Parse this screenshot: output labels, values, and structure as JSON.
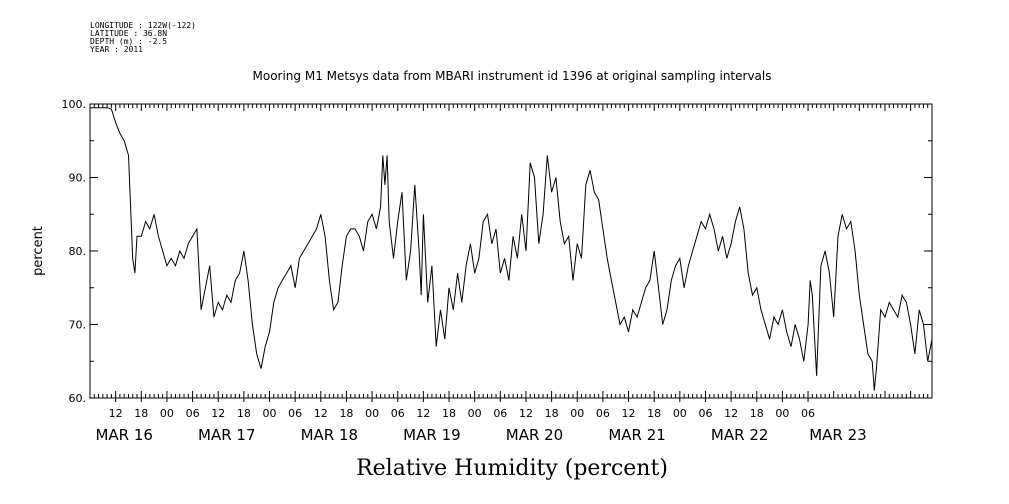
{
  "header": {
    "longitude": "LONGITUDE : 122W(-122)",
    "latitude": "LATITUDE : 36.8N",
    "depth": "DEPTH (m) : -2.5",
    "year": "YEAR : 2011"
  },
  "chart_data": {
    "type": "line",
    "title": "Mooring M1 Metsys data from MBARI instrument id 1396 at original sampling intervals",
    "xlabel": "Relative Humidity (percent)",
    "ylabel": "percent",
    "ylim": [
      60,
      100
    ],
    "yticks": [
      60,
      70,
      80,
      90,
      100
    ],
    "ytick_labels": [
      "60.",
      "70.",
      "80.",
      "90.",
      "100."
    ],
    "xlim_hours": [
      0,
      138
    ],
    "hour_ticks": [
      "12",
      "18",
      "00",
      "06",
      "12",
      "18",
      "00",
      "06",
      "12",
      "18",
      "00",
      "06",
      "12",
      "18",
      "00",
      "06",
      "12",
      "18",
      "00",
      "06",
      "12",
      "18",
      "00",
      "06",
      "12",
      "18",
      "00",
      "06"
    ],
    "date_labels": [
      "MAR 16",
      "MAR 17",
      "MAR 18",
      "MAR 19",
      "MAR 20",
      "MAR 21",
      "MAR 22",
      "MAR 23"
    ],
    "grid": false,
    "color": "#000000",
    "series": [
      {
        "values": [
          [
            0,
            99.5
          ],
          [
            2,
            99.5
          ],
          [
            4,
            99.5
          ],
          [
            5,
            99.3
          ],
          [
            6,
            97.5
          ],
          [
            7,
            96
          ],
          [
            8,
            95
          ],
          [
            9,
            93
          ],
          [
            10,
            79
          ],
          [
            10.5,
            77
          ],
          [
            11,
            82
          ],
          [
            12,
            82
          ],
          [
            13,
            84
          ],
          [
            14,
            83
          ],
          [
            15,
            85
          ],
          [
            16,
            82
          ],
          [
            17,
            80
          ],
          [
            18,
            78
          ],
          [
            19,
            79
          ],
          [
            20,
            78
          ],
          [
            21,
            80
          ],
          [
            22,
            79
          ],
          [
            23,
            81
          ],
          [
            24,
            82
          ],
          [
            25,
            83
          ],
          [
            26,
            72
          ],
          [
            27,
            75
          ],
          [
            28,
            78
          ],
          [
            29,
            71
          ],
          [
            30,
            73
          ],
          [
            31,
            72
          ],
          [
            32,
            74
          ],
          [
            33,
            73
          ],
          [
            34,
            76
          ],
          [
            35,
            77
          ],
          [
            36,
            80
          ],
          [
            37,
            76
          ],
          [
            38,
            70
          ],
          [
            39,
            66
          ],
          [
            40,
            64
          ],
          [
            41,
            67
          ],
          [
            42,
            69
          ],
          [
            43,
            73
          ],
          [
            44,
            75
          ],
          [
            45,
            76
          ],
          [
            46,
            77
          ],
          [
            47,
            78
          ],
          [
            48,
            75
          ],
          [
            49,
            79
          ],
          [
            50,
            80
          ],
          [
            51,
            81
          ],
          [
            52,
            82
          ],
          [
            53,
            83
          ],
          [
            54,
            85
          ],
          [
            55,
            82
          ],
          [
            56,
            76
          ],
          [
            57,
            72
          ],
          [
            58,
            73
          ],
          [
            59,
            78
          ],
          [
            60,
            82
          ],
          [
            61,
            83
          ],
          [
            62,
            83
          ],
          [
            63,
            82
          ],
          [
            64,
            80
          ],
          [
            65,
            84
          ],
          [
            66,
            85
          ],
          [
            67,
            83
          ],
          [
            68,
            86
          ],
          [
            68.5,
            93
          ],
          [
            69,
            89
          ],
          [
            69.5,
            93
          ],
          [
            70,
            84
          ],
          [
            71,
            79
          ],
          [
            72,
            84
          ],
          [
            73,
            88
          ],
          [
            74,
            76
          ],
          [
            75,
            80
          ],
          [
            76,
            89
          ],
          [
            77,
            80
          ],
          [
            77.5,
            74
          ],
          [
            78,
            85
          ],
          [
            79,
            73
          ],
          [
            80,
            78
          ],
          [
            81,
            67
          ],
          [
            82,
            72
          ],
          [
            83,
            68
          ],
          [
            84,
            75
          ],
          [
            85,
            72
          ],
          [
            86,
            77
          ],
          [
            87,
            73
          ],
          [
            88,
            78
          ],
          [
            89,
            81
          ],
          [
            90,
            77
          ],
          [
            91,
            79
          ],
          [
            92,
            84
          ],
          [
            93,
            85
          ],
          [
            94,
            81
          ],
          [
            95,
            83
          ],
          [
            96,
            77
          ],
          [
            97,
            79
          ],
          [
            98,
            76
          ],
          [
            99,
            82
          ],
          [
            100,
            79
          ],
          [
            101,
            85
          ],
          [
            102,
            80
          ],
          [
            103,
            92
          ],
          [
            104,
            90
          ],
          [
            105,
            81
          ],
          [
            106,
            85
          ],
          [
            107,
            93
          ],
          [
            108,
            88
          ],
          [
            109,
            90
          ],
          [
            110,
            84
          ],
          [
            111,
            81
          ],
          [
            112,
            82
          ],
          [
            113,
            76
          ],
          [
            114,
            81
          ],
          [
            115,
            79
          ],
          [
            116,
            89
          ],
          [
            117,
            91
          ],
          [
            118,
            88
          ],
          [
            119,
            87
          ],
          [
            120,
            83
          ],
          [
            121,
            79
          ],
          [
            122,
            76
          ],
          [
            123,
            73
          ],
          [
            124,
            70
          ],
          [
            125,
            71
          ],
          [
            126,
            69
          ],
          [
            127,
            72
          ],
          [
            128,
            71
          ],
          [
            129,
            73
          ],
          [
            130,
            75
          ],
          [
            131,
            76
          ],
          [
            132,
            80
          ],
          [
            133,
            75
          ],
          [
            134,
            70
          ],
          [
            135,
            72
          ],
          [
            136,
            76
          ],
          [
            137,
            78
          ],
          [
            138,
            79
          ],
          [
            139,
            75
          ],
          [
            140,
            78
          ],
          [
            141,
            80
          ],
          [
            142,
            82
          ],
          [
            143,
            84
          ],
          [
            144,
            83
          ],
          [
            145,
            85
          ],
          [
            146,
            83
          ],
          [
            147,
            80
          ],
          [
            148,
            82
          ],
          [
            149,
            79
          ],
          [
            150,
            81
          ],
          [
            151,
            84
          ],
          [
            152,
            86
          ],
          [
            153,
            83
          ],
          [
            154,
            77
          ],
          [
            155,
            74
          ],
          [
            156,
            75
          ],
          [
            157,
            72
          ],
          [
            158,
            70
          ],
          [
            159,
            68
          ],
          [
            160,
            71
          ],
          [
            161,
            70
          ],
          [
            162,
            72
          ],
          [
            163,
            69
          ],
          [
            164,
            67
          ],
          [
            165,
            70
          ],
          [
            166,
            68
          ],
          [
            167,
            65
          ],
          [
            168,
            70
          ],
          [
            168.5,
            76
          ],
          [
            169,
            74
          ],
          [
            170,
            63
          ],
          [
            171,
            78
          ],
          [
            172,
            80
          ],
          [
            173,
            77
          ],
          [
            174,
            71
          ],
          [
            175,
            82
          ],
          [
            176,
            85
          ],
          [
            177,
            83
          ],
          [
            178,
            84
          ],
          [
            179,
            80
          ],
          [
            180,
            74
          ],
          [
            181,
            70
          ],
          [
            182,
            66
          ],
          [
            183,
            65
          ],
          [
            183.5,
            61
          ],
          [
            184,
            64
          ],
          [
            185,
            72
          ],
          [
            186,
            71
          ],
          [
            187,
            73
          ],
          [
            188,
            72
          ],
          [
            189,
            71
          ],
          [
            190,
            74
          ],
          [
            191,
            73
          ],
          [
            192,
            70
          ],
          [
            193,
            66
          ],
          [
            194,
            72
          ],
          [
            195,
            70
          ],
          [
            196,
            65
          ],
          [
            197,
            68
          ]
        ]
      }
    ]
  }
}
